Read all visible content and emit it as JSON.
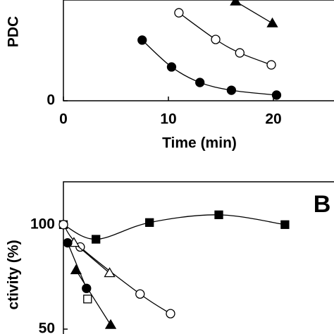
{
  "chart_data": [
    {
      "type": "scatter",
      "ylabel": "PDC",
      "xlabel": "Time (min)",
      "xlim": [
        0,
        26
      ],
      "xticks": [
        0,
        10,
        20
      ],
      "ylim": [
        0,
        48
      ],
      "yticks": [
        0
      ],
      "series": [
        {
          "marker": "circle",
          "filled": true,
          "x": [
            7.5,
            10.3,
            13,
            16,
            20.3
          ],
          "values": [
            28.9,
            16.1,
            8.7,
            5.0,
            2.7
          ]
        },
        {
          "marker": "circle",
          "filled": false,
          "x": [
            11,
            14.5,
            16.8,
            19.8
          ],
          "values": [
            41.9,
            29.2,
            22.8,
            17.1
          ]
        },
        {
          "marker": "triangle",
          "filled": true,
          "x": [
            16.4,
            19.9
          ],
          "values": [
            47.3,
            36.9
          ]
        }
      ]
    },
    {
      "type": "scatter",
      "ylabel": "ctivity (%)",
      "panel_label": "B",
      "xlim": [
        0,
        26
      ],
      "ylim": [
        48,
        120.5
      ],
      "yticks": [
        50,
        100
      ],
      "series": [
        {
          "marker": "square",
          "filled": true,
          "x": [
            0,
            3.1,
            8.2,
            14.8,
            21.1
          ],
          "values": [
            100,
            93,
            101,
            104.7,
            100
          ]
        },
        {
          "marker": "circle",
          "filled": false,
          "x": [
            0,
            1.6,
            7.3,
            10.2
          ],
          "values": [
            100,
            89.3,
            66.8,
            57.4
          ]
        },
        {
          "marker": "triangle",
          "filled": false,
          "x": [
            1.0,
            4.4
          ],
          "values": [
            91.3,
            76.8
          ]
        },
        {
          "marker": "square",
          "filled": false,
          "x": [
            2.3
          ],
          "values": [
            64.4
          ]
        },
        {
          "marker": "triangle",
          "filled": true,
          "x": [
            1.2,
            4.5
          ],
          "values": [
            78.2,
            52
          ]
        },
        {
          "marker": "circle",
          "filled": true,
          "x": [
            0.4,
            2.2
          ],
          "values": [
            91.3,
            69.5
          ]
        }
      ]
    }
  ]
}
